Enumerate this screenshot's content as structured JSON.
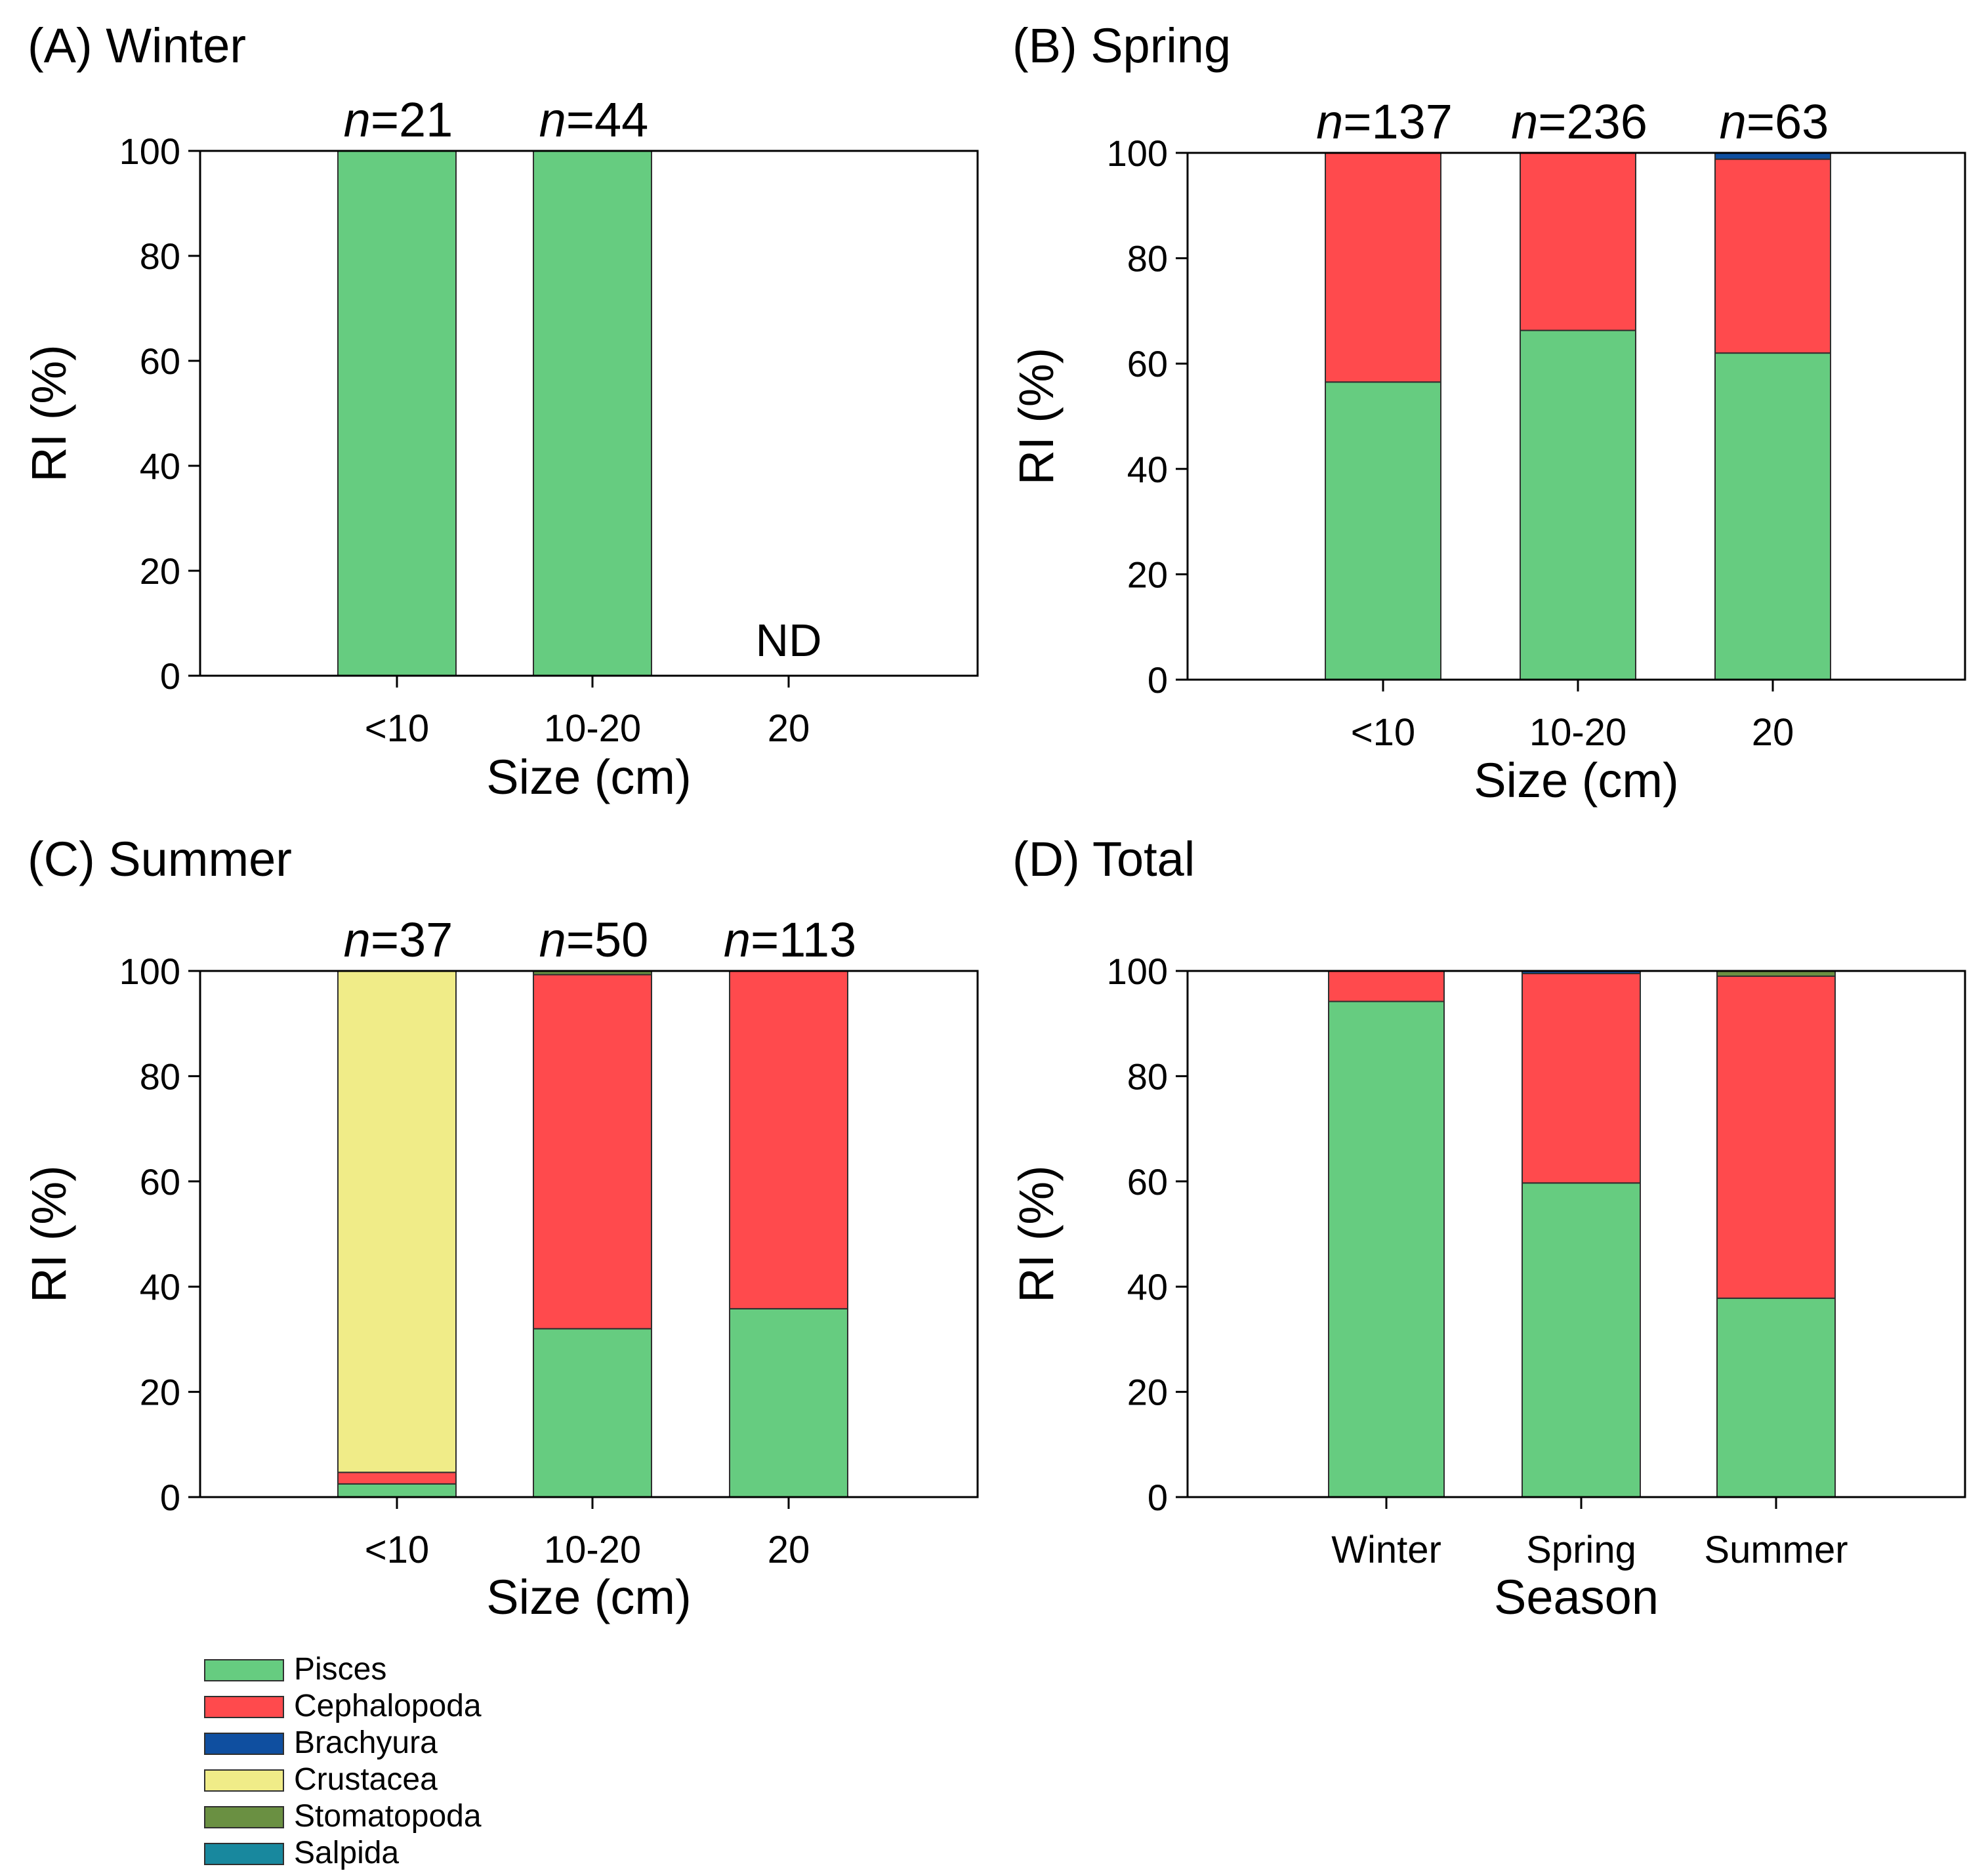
{
  "colors": {
    "Pisces": "#66cc80",
    "Cephalopoda": "#ff4a4d",
    "Brachyura": "#0f4fa0",
    "Crustacea": "#f0ec88",
    "Stomatopoda": "#6a9042",
    "Salpida": "#18889e"
  },
  "legend": [
    "Pisces",
    "Cephalopoda",
    "Brachyura",
    "Crustacea",
    "Stomatopoda",
    "Salpida"
  ],
  "chart_data": [
    {
      "panel": "A",
      "type": "bar",
      "stacked": true,
      "title": "(A) Winter",
      "xlabel": "Size (cm)",
      "ylabel": "RI (%)",
      "ylim": [
        0,
        100
      ],
      "yticks": [
        "0",
        "20",
        "40",
        "60",
        "80",
        "100"
      ],
      "categories": [
        "<10",
        "10-20",
        "20"
      ],
      "n_labels": [
        "21",
        "44",
        "ND"
      ],
      "series": [
        {
          "name": "Pisces",
          "values": [
            100,
            100,
            0
          ]
        },
        {
          "name": "Cephalopoda",
          "values": [
            0,
            0,
            0
          ]
        },
        {
          "name": "Brachyura",
          "values": [
            0,
            0,
            0
          ]
        },
        {
          "name": "Crustacea",
          "values": [
            0,
            0,
            0
          ]
        },
        {
          "name": "Stomatopoda",
          "values": [
            0,
            0,
            0
          ]
        },
        {
          "name": "Salpida",
          "values": [
            0,
            0,
            0
          ]
        }
      ]
    },
    {
      "panel": "B",
      "type": "bar",
      "stacked": true,
      "title": "(B) Spring",
      "xlabel": "Size (cm)",
      "ylabel": "RI (%)",
      "ylim": [
        0,
        100
      ],
      "yticks": [
        "0",
        "20",
        "40",
        "60",
        "80",
        "100"
      ],
      "categories": [
        "<10",
        "10-20",
        "20"
      ],
      "n_labels": [
        "137",
        "236",
        "63"
      ],
      "series": [
        {
          "name": "Pisces",
          "values": [
            56.5,
            66.3,
            62
          ]
        },
        {
          "name": "Cephalopoda",
          "values": [
            43.5,
            33.7,
            36.8
          ]
        },
        {
          "name": "Brachyura",
          "values": [
            0,
            0,
            1.2
          ]
        },
        {
          "name": "Crustacea",
          "values": [
            0,
            0,
            0
          ]
        },
        {
          "name": "Stomatopoda",
          "values": [
            0,
            0,
            0
          ]
        },
        {
          "name": "Salpida",
          "values": [
            0,
            0,
            0
          ]
        }
      ]
    },
    {
      "panel": "C",
      "type": "bar",
      "stacked": true,
      "title": "(C) Summer",
      "xlabel": "Size (cm)",
      "ylabel": "RI (%)",
      "ylim": [
        0,
        100
      ],
      "yticks": [
        "0",
        "20",
        "40",
        "60",
        "80",
        "100"
      ],
      "categories": [
        "<10",
        "10-20",
        "20"
      ],
      "n_labels": [
        "37",
        "50",
        "113"
      ],
      "series": [
        {
          "name": "Pisces",
          "values": [
            2.5,
            32,
            35.8
          ]
        },
        {
          "name": "Cephalopoda",
          "values": [
            2.2,
            67.3,
            64.2
          ]
        },
        {
          "name": "Brachyura",
          "values": [
            0,
            0,
            0
          ]
        },
        {
          "name": "Crustacea",
          "values": [
            95.3,
            0,
            0
          ]
        },
        {
          "name": "Stomatopoda",
          "values": [
            0,
            0.7,
            0
          ]
        },
        {
          "name": "Salpida",
          "values": [
            0,
            0,
            0
          ]
        }
      ]
    },
    {
      "panel": "D",
      "type": "bar",
      "stacked": true,
      "title": "(D) Total",
      "xlabel": "Season",
      "ylabel": "RI (%)",
      "ylim": [
        0,
        100
      ],
      "yticks": [
        "0",
        "20",
        "40",
        "60",
        "80",
        "100"
      ],
      "categories": [
        "Winter",
        "Spring",
        "Summer"
      ],
      "n_labels": [
        "",
        "",
        ""
      ],
      "series": [
        {
          "name": "Pisces",
          "values": [
            94.2,
            59.7,
            37.8
          ]
        },
        {
          "name": "Cephalopoda",
          "values": [
            5.8,
            39.8,
            61.2
          ]
        },
        {
          "name": "Brachyura",
          "values": [
            0,
            0.5,
            0
          ]
        },
        {
          "name": "Crustacea",
          "values": [
            0,
            0,
            0
          ]
        },
        {
          "name": "Stomatopoda",
          "values": [
            0,
            0,
            1.0
          ]
        },
        {
          "name": "Salpida",
          "values": [
            0,
            0,
            0
          ]
        }
      ]
    }
  ]
}
